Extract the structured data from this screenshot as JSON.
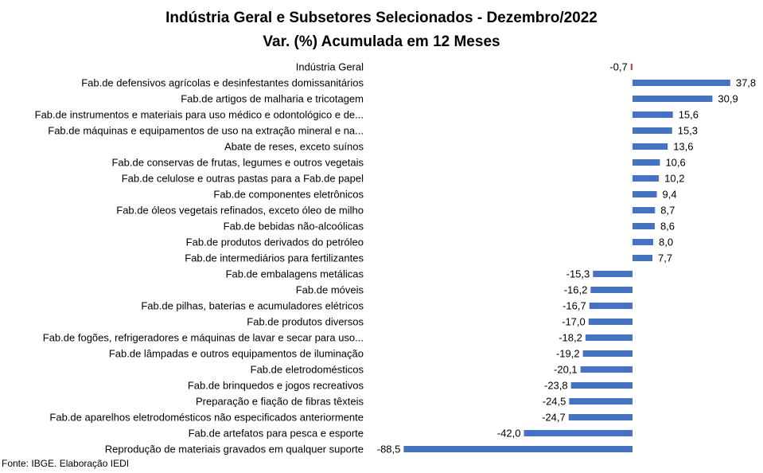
{
  "chart_data": {
    "type": "bar",
    "orientation": "horizontal",
    "title": "Indústria Geral e Subsetores Selecionados - Dezembro/2022",
    "subtitle": "Var. (%) Acumulada em 12 Meses",
    "source": "Fonte: IBGE. Elaboração IEDI",
    "bar_color": "#4472C4",
    "highlight_color": "#C0504D",
    "highlight_index": 0,
    "xlim": [
      -88.5,
      37.8
    ],
    "grid": false,
    "legend": "none",
    "categories": [
      "Indústria Geral",
      "Fab.de defensivos agrícolas e desinfestantes domissanitários",
      "Fab.de artigos de malharia e tricotagem",
      "Fab.de instrumentos e materiais para uso médico e odontológico e de...",
      "Fab.de máquinas e equipamentos de uso na extração mineral e na...",
      "Abate de reses, exceto suínos",
      "Fab.de conservas de frutas, legumes e outros vegetais",
      "Fab.de celulose e outras pastas para a Fab.de papel",
      "Fab.de componentes eletrônicos",
      "Fab.de óleos vegetais refinados, exceto óleo de milho",
      "Fab.de bebidas não-alcoólicas",
      "Fab.de produtos derivados do petróleo",
      "Fab.de intermediários para fertilizantes",
      "Fab.de embalagens metálicas",
      "Fab.de móveis",
      "Fab.de pilhas, baterias e acumuladores elétricos",
      "Fab.de produtos diversos",
      "Fab.de fogões, refrigeradores e máquinas de lavar e secar para uso...",
      "Fab.de lâmpadas e outros equipamentos de iluminação",
      "Fab.de eletrodomésticos",
      "Fab.de brinquedos e jogos recreativos",
      "Preparação e fiação de fibras têxteis",
      "Fab.de aparelhos eletrodomésticos não especificados anteriormente",
      "Fab.de artefatos para pesca e esporte",
      "Reprodução de materiais gravados em qualquer suporte"
    ],
    "values": [
      -0.7,
      37.8,
      30.9,
      15.6,
      15.3,
      13.6,
      10.6,
      10.2,
      9.4,
      8.7,
      8.6,
      8.0,
      7.7,
      -15.3,
      -16.2,
      -16.7,
      -17.0,
      -18.2,
      -19.2,
      -20.1,
      -23.8,
      -24.5,
      -24.7,
      -42.0,
      -88.5
    ],
    "value_labels": [
      "-0,7",
      "37,8",
      "30,9",
      "15,6",
      "15,3",
      "13,6",
      "10,6",
      "10,2",
      "9,4",
      "8,7",
      "8,6",
      "8,0",
      "7,7",
      "-15,3",
      "-16,2",
      "-16,7",
      "-17,0",
      "-18,2",
      "-19,2",
      "-20,1",
      "-23,8",
      "-24,5",
      "-24,7",
      "-42,0",
      "-88,5"
    ]
  }
}
